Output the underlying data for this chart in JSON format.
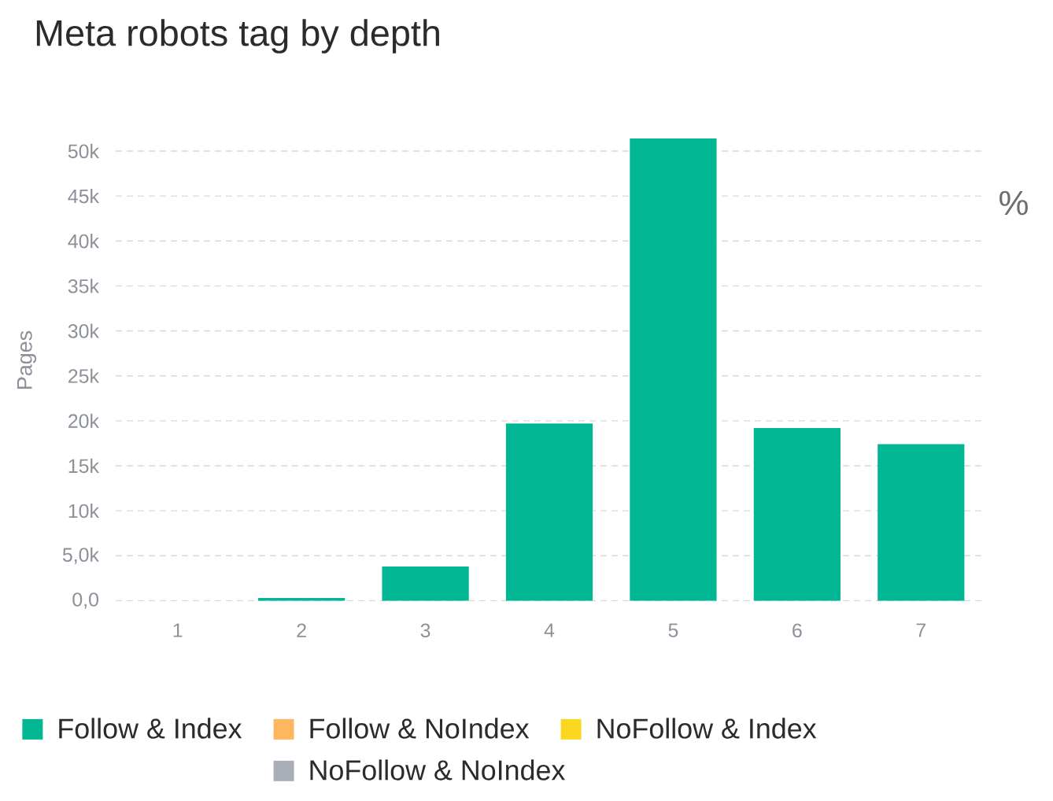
{
  "chart_data": {
    "type": "bar",
    "title": "Meta robots tag by depth",
    "ylabel": "Pages",
    "categories": [
      "1",
      "2",
      "3",
      "4",
      "5",
      "6",
      "7"
    ],
    "series": [
      {
        "name": "Follow & Index",
        "color": "#00b693",
        "values": [
          0,
          300,
          3800,
          19700,
          51400,
          19200,
          17400
        ]
      },
      {
        "name": "Follow & NoIndex",
        "color": "#fdb75e",
        "values": [
          0,
          0,
          0,
          0,
          0,
          0,
          0
        ]
      },
      {
        "name": "NoFollow & Index",
        "color": "#fad81f",
        "values": [
          0,
          0,
          0,
          0,
          0,
          0,
          0
        ]
      },
      {
        "name": "NoFollow & NoIndex",
        "color": "#a9adb8",
        "values": [
          0,
          0,
          0,
          0,
          0,
          0,
          0
        ]
      }
    ],
    "stacked": true,
    "ylim": [
      0,
      51400
    ],
    "yticks": [
      {
        "value": 0,
        "label": "0,0"
      },
      {
        "value": 5000,
        "label": "5,0k"
      },
      {
        "value": 10000,
        "label": "10k"
      },
      {
        "value": 15000,
        "label": "15k"
      },
      {
        "value": 20000,
        "label": "20k"
      },
      {
        "value": 25000,
        "label": "25k"
      },
      {
        "value": 30000,
        "label": "30k"
      },
      {
        "value": 35000,
        "label": "35k"
      },
      {
        "value": 40000,
        "label": "40k"
      },
      {
        "value": 45000,
        "label": "45k"
      },
      {
        "value": 50000,
        "label": "50k"
      }
    ],
    "grid": "y",
    "legend": "bottom",
    "annotations": [
      "%"
    ]
  }
}
